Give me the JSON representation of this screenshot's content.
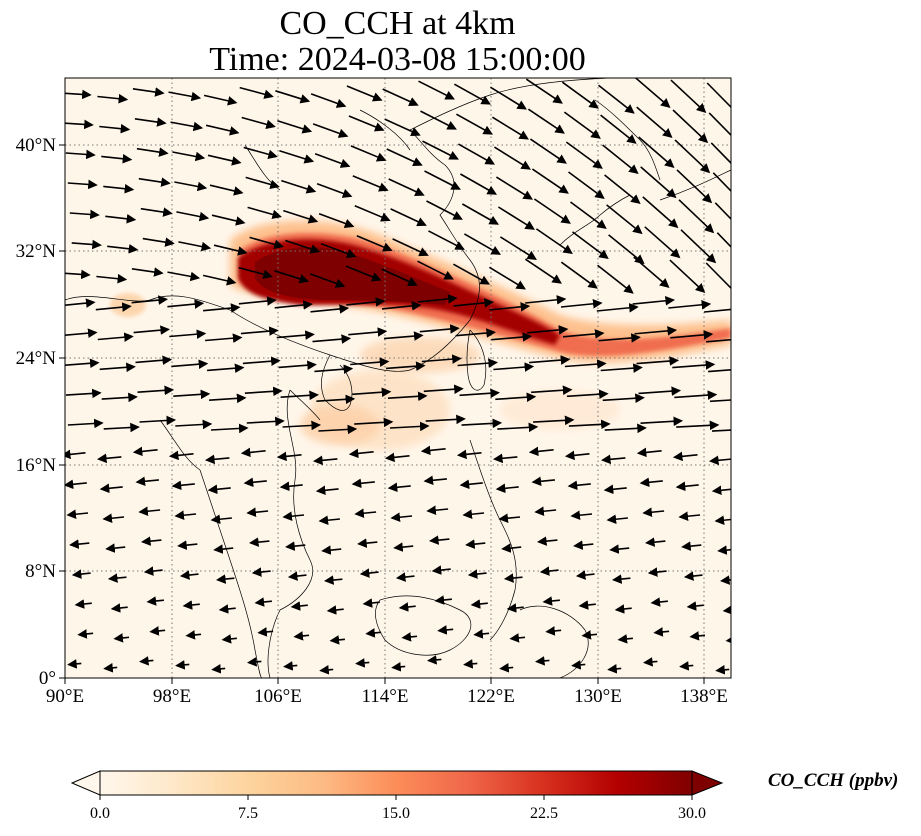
{
  "title": {
    "line1": "CO_CCH at 4km",
    "line2": "Time: 2024-03-08 15:00:00"
  },
  "map": {
    "lon_range": [
      90,
      140
    ],
    "lat_range": [
      0,
      45
    ],
    "lon_ticks": [
      "90°E",
      "98°E",
      "106°E",
      "114°E",
      "122°E",
      "130°E",
      "138°E"
    ],
    "lat_ticks": [
      "0°",
      "8°N",
      "16°N",
      "24°N",
      "32°N",
      "40°N"
    ],
    "gridlines": true,
    "gridline_style": "dotted",
    "colormap": "OrRd",
    "wind_vectors": true,
    "variable": "CO_CCH",
    "level": "4km"
  },
  "colorbar": {
    "label": "CO_CCH (ppbv)",
    "ticks": [
      "0.0",
      "7.5",
      "15.0",
      "22.5",
      "30.0"
    ],
    "min": 0,
    "max": 30,
    "extend": "both",
    "colors": [
      "#fff7ec",
      "#fee8c8",
      "#fdd49e",
      "#fdbb84",
      "#fc8d59",
      "#ef6548",
      "#d7301f",
      "#b30000",
      "#7f0000"
    ]
  }
}
